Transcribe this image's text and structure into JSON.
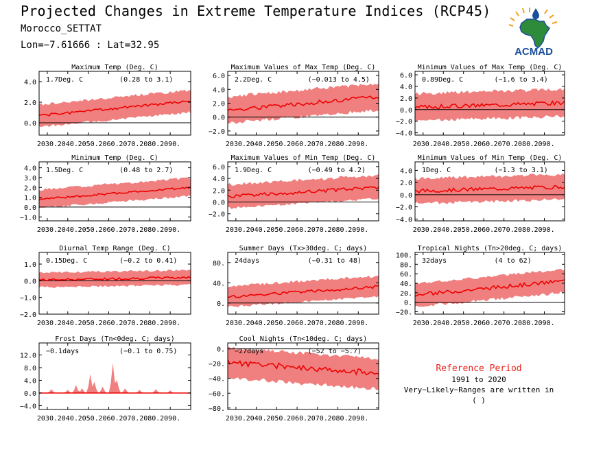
{
  "header": {
    "title": "Projected Changes in Extreme Temperature Indices (RCP45)",
    "region": "Morocco_SETTAT",
    "coords": "Lon=−7.61666 : Lat=32.95"
  },
  "logo": {
    "text": "ACMAD",
    "icon": "africa-map-logo-icon"
  },
  "reference": {
    "title": "Reference Period",
    "years": "1991 to 2020",
    "note": "Very−Likely−Ranges are written in ( )"
  },
  "colors": {
    "band": "#f08080",
    "line": "#ee0000",
    "axis": "#000000",
    "ref_title": "#e8221b",
    "logo_blue": "#1a4f9c",
    "logo_green": "#2e8b3a",
    "logo_orange": "#f0a020"
  },
  "x_ticks": [
    "2030.",
    "2040.",
    "2050.",
    "2060.",
    "2070.",
    "2080.",
    "2090."
  ],
  "chart_data": [
    {
      "type": "area",
      "title": "Maximum Temp (Deg. C)",
      "value_label": "1.7Deg. C",
      "range_label": "(0.28 to 3.1)",
      "xlim": [
        2026,
        2100
      ],
      "ylim": [
        -1.2,
        5.0
      ],
      "yticks": [
        0.0,
        2.0,
        4.0
      ],
      "ytick_labels": [
        "0.0",
        "2.0",
        "4.0"
      ],
      "start": 0.7,
      "end": 2.1,
      "band_low": 1.1,
      "band_high": 1.1,
      "noise": 0.12,
      "seed": 1
    },
    {
      "type": "area",
      "title": "Maximum Values of Max Temp (Deg. C)",
      "value_label": "2.2Deg. C",
      "range_label": "(−0.013 to 4.5)",
      "xlim": [
        2026,
        2100
      ],
      "ylim": [
        -2.6,
        6.6
      ],
      "yticks": [
        -2.0,
        0.0,
        2.0,
        4.0,
        6.0
      ],
      "ytick_labels": [
        "−2.0",
        "0.0",
        "2.0",
        "4.0",
        "6.0"
      ],
      "start": 1.0,
      "end": 2.9,
      "band_low": 1.9,
      "band_high": 2.0,
      "noise": 0.3,
      "seed": 2
    },
    {
      "type": "area",
      "title": "Minimum Values of Max Temp (Deg. C)",
      "value_label": "0.89Deg. C",
      "range_label": "(−1.6 to 3.4)",
      "xlim": [
        2026,
        2100
      ],
      "ylim": [
        -4.4,
        6.6
      ],
      "yticks": [
        -4.0,
        -2.0,
        0.0,
        2.0,
        4.0,
        6.0
      ],
      "ytick_labels": [
        "−4.0",
        "−2.0",
        "0.0",
        "2.0",
        "4.0",
        "6.0"
      ],
      "start": 0.4,
      "end": 1.2,
      "band_low": 2.4,
      "band_high": 2.4,
      "noise": 0.35,
      "seed": 3
    },
    {
      "type": "area",
      "title": "Minimum Temp (Deg. C)",
      "value_label": "1.5Deg. C",
      "range_label": "(0.48 to 2.7)",
      "xlim": [
        2026,
        2100
      ],
      "ylim": [
        -1.4,
        4.6
      ],
      "yticks": [
        -1.0,
        0.0,
        1.0,
        2.0,
        3.0,
        4.0
      ],
      "ytick_labels": [
        "−1.0",
        "0.0",
        "1.0",
        "2.0",
        "3.0",
        "4.0"
      ],
      "start": 0.8,
      "end": 2.0,
      "band_low": 0.9,
      "band_high": 1.0,
      "noise": 0.1,
      "seed": 4
    },
    {
      "type": "area",
      "title": "Maximum Values of Min Temp (Deg. C)",
      "value_label": "1.9Deg. C",
      "range_label": "(−0.49 to 4.2)",
      "xlim": [
        2026,
        2100
      ],
      "ylim": [
        -3.2,
        6.8
      ],
      "yticks": [
        -2.0,
        0.0,
        2.0,
        4.0,
        6.0
      ],
      "ytick_labels": [
        "−2.0",
        "0.0",
        "2.0",
        "4.0",
        "6.0"
      ],
      "start": 0.9,
      "end": 2.5,
      "band_low": 2.0,
      "band_high": 2.1,
      "noise": 0.3,
      "seed": 5
    },
    {
      "type": "area",
      "title": "Minimum Values of Min Temp (Deg. C)",
      "value_label": "1Deg. C",
      "range_label": "(−1.3 to 3.1)",
      "xlim": [
        2026,
        2100
      ],
      "ylim": [
        -4.3,
        5.4
      ],
      "yticks": [
        -4.0,
        -2.0,
        0.0,
        2.0,
        4.0
      ],
      "ytick_labels": [
        "−4.0",
        "−2.0",
        "0.0",
        "2.0",
        "4.0"
      ],
      "start": 0.6,
      "end": 1.3,
      "band_low": 2.1,
      "band_high": 2.1,
      "noise": 0.3,
      "seed": 6
    },
    {
      "type": "area",
      "title": "Diurnal Temp Range (Deg. C)",
      "value_label": "0.15Deg. C",
      "range_label": "(−0.2 to 0.41)",
      "xlim": [
        2026,
        2100
      ],
      "ylim": [
        -2.0,
        1.7
      ],
      "yticks": [
        -2.0,
        -1.0,
        0.0,
        1.0
      ],
      "ytick_labels": [
        "−2.0",
        "−1.0",
        "0.0",
        "1.0"
      ],
      "start": 0.05,
      "end": 0.2,
      "band_low": 0.45,
      "band_high": 0.45,
      "noise": 0.07,
      "seed": 7
    },
    {
      "type": "area",
      "title": "Summer Days (Tx>30deg. C; days)",
      "value_label": "24days",
      "range_label": "(−0.31 to 48)",
      "xlim": [
        2026,
        2100
      ],
      "ylim": [
        -22,
        100
      ],
      "yticks": [
        0,
        40,
        80
      ],
      "ytick_labels": [
        "0.",
        "40.",
        "80."
      ],
      "start": 12,
      "end": 32,
      "band_low": 20,
      "band_high": 22,
      "noise": 3,
      "seed": 8
    },
    {
      "type": "area",
      "title": "Tropical Nights (Tn>20deg. C; days)",
      "value_label": "32days",
      "range_label": "(4 to 62)",
      "xlim": [
        2026,
        2100
      ],
      "ylim": [
        -25,
        105
      ],
      "yticks": [
        -20,
        0,
        20,
        40,
        60,
        80,
        100
      ],
      "ytick_labels": [
        "−20.",
        "0.",
        "20.",
        "40.",
        "60.",
        "80.",
        "100."
      ],
      "start": 15,
      "end": 45,
      "band_low": 25,
      "band_high": 25,
      "noise": 4,
      "seed": 9
    },
    {
      "type": "area",
      "title": "Frost Days (Tn<0deg. C; days)",
      "value_label": "−0.1days",
      "range_label": "(−0.1 to 0.75)",
      "xlim": [
        2026,
        2100
      ],
      "ylim": [
        -5.2,
        15.8
      ],
      "yticks": [
        -4.0,
        0.0,
        4.0,
        8.0,
        12.0
      ],
      "ytick_labels": [
        "−4.0",
        "0.0",
        "4.0",
        "8.0",
        "12.0"
      ],
      "start": 0,
      "end": 0,
      "band_low": 0,
      "band_high": 0,
      "noise": 0,
      "seed": 10,
      "spikes": [
        [
          2032,
          1.2
        ],
        [
          2040,
          1.0
        ],
        [
          2044,
          2.5
        ],
        [
          2047,
          1.5
        ],
        [
          2051,
          6.0
        ],
        [
          2053,
          3.5
        ],
        [
          2057,
          2.0
        ],
        [
          2062,
          9.5
        ],
        [
          2064,
          4.0
        ],
        [
          2068,
          1.5
        ],
        [
          2075,
          1.0
        ],
        [
          2083,
          1.2
        ],
        [
          2090,
          0.8
        ]
      ]
    },
    {
      "type": "area",
      "title": "Cool Nights (Tn<10deg. C; days)",
      "value_label": "−27days",
      "range_label": "(−52 to −5.7)",
      "xlim": [
        2026,
        2100
      ],
      "ylim": [
        -82,
        8
      ],
      "yticks": [
        -80,
        -60,
        -40,
        -20,
        0
      ],
      "ytick_labels": [
        "−80.",
        "−60.",
        "−40.",
        "−20.",
        "0."
      ],
      "start": -18,
      "end": -33,
      "band_low": 22,
      "band_high": 20,
      "noise": 4,
      "seed": 11
    }
  ]
}
